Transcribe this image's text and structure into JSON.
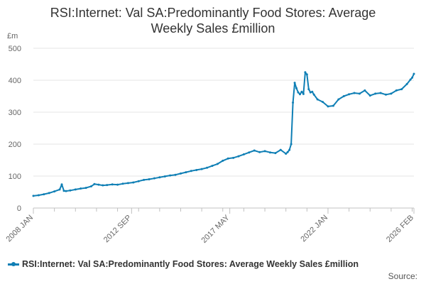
{
  "chart_data": {
    "type": "line",
    "title": "RSI:Internet: Val SA:Predominantly Food Stores: Average Weekly Sales £million",
    "ylabel": "£m",
    "xlabel": "",
    "ylim": [
      0,
      500
    ],
    "yticks": [
      0,
      100,
      200,
      300,
      400,
      500
    ],
    "xlim": [
      2008.0,
      2026.083
    ],
    "xticks": [
      {
        "label": "2008 JAN",
        "value": 2008.0
      },
      {
        "label": "2012 SEP",
        "value": 2012.667
      },
      {
        "label": "2017 MAY",
        "value": 2017.333
      },
      {
        "label": "2022 JAN",
        "value": 2022.0
      },
      {
        "label": "2026 FEB",
        "value": 2026.083
      }
    ],
    "grid": true,
    "legend_position": "bottom-left",
    "color": "#0f7fb5",
    "series": [
      {
        "name": "RSI:Internet: Val SA:Predominantly Food Stores: Average Weekly Sales £million",
        "x": [
          2008.0,
          2008.25,
          2008.5,
          2008.75,
          2009.0,
          2009.25,
          2009.35,
          2009.45,
          2009.55,
          2009.75,
          2010.0,
          2010.25,
          2010.5,
          2010.75,
          2010.9,
          2011.1,
          2011.3,
          2011.5,
          2011.75,
          2012.0,
          2012.25,
          2012.5,
          2012.75,
          2013.0,
          2013.25,
          2013.5,
          2013.75,
          2014.0,
          2014.25,
          2014.5,
          2014.75,
          2015.0,
          2015.25,
          2015.5,
          2015.75,
          2016.0,
          2016.25,
          2016.5,
          2016.75,
          2017.0,
          2017.25,
          2017.5,
          2017.75,
          2018.0,
          2018.25,
          2018.5,
          2018.75,
          2019.0,
          2019.25,
          2019.5,
          2019.75,
          2020.0,
          2020.083,
          2020.167,
          2020.25,
          2020.333,
          2020.417,
          2020.5,
          2020.583,
          2020.667,
          2020.75,
          2020.833,
          2020.917,
          2021.0,
          2021.083,
          2021.167,
          2021.25,
          2021.333,
          2021.5,
          2021.75,
          2022.0,
          2022.25,
          2022.5,
          2022.75,
          2023.0,
          2023.25,
          2023.5,
          2023.75,
          2024.0,
          2024.25,
          2024.5,
          2024.75,
          2025.0,
          2025.25,
          2025.5,
          2025.75,
          2025.917,
          2026.0,
          2026.083
        ],
        "values": [
          38,
          40,
          43,
          47,
          52,
          58,
          74,
          54,
          53,
          55,
          58,
          61,
          63,
          68,
          75,
          73,
          71,
          72,
          74,
          73,
          76,
          78,
          80,
          84,
          88,
          90,
          93,
          96,
          99,
          102,
          104,
          108,
          112,
          116,
          119,
          122,
          126,
          132,
          138,
          148,
          155,
          157,
          162,
          168,
          174,
          180,
          175,
          178,
          174,
          172,
          182,
          170,
          175,
          182,
          200,
          330,
          392,
          375,
          362,
          356,
          364,
          357,
          425,
          418,
          372,
          362,
          364,
          355,
          340,
          332,
          318,
          320,
          340,
          350,
          356,
          360,
          358,
          368,
          352,
          358,
          360,
          355,
          358,
          368,
          372,
          388,
          402,
          408,
          420
        ]
      }
    ]
  },
  "source_label": "Source:"
}
